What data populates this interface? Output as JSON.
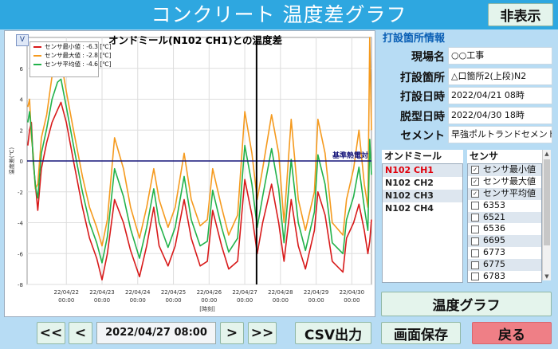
{
  "header": {
    "title": "コンクリート 温度差グラフ",
    "hide_label": "非表示"
  },
  "chart_data": {
    "type": "line",
    "title": "オンドミール(N102 CH1)との温度差",
    "badge": "V",
    "ylabel": "温度差(℃)",
    "xlabel": "[時刻]",
    "ylim": [
      -8,
      8
    ],
    "yticks": [
      -8,
      -6,
      -4,
      -2,
      0,
      2,
      4,
      6
    ],
    "xticks": [
      {
        "x": 2,
        "date": "22/04/22",
        "time": "00:00"
      },
      {
        "x": 3,
        "date": "22/04/23",
        "time": "00:00"
      },
      {
        "x": 4,
        "date": "22/04/24",
        "time": "00:00"
      },
      {
        "x": 5,
        "date": "22/04/25",
        "time": "00:00"
      },
      {
        "x": 6,
        "date": "22/04/26",
        "time": "00:00"
      },
      {
        "x": 7,
        "date": "22/04/27",
        "time": "00:00"
      },
      {
        "x": 8,
        "date": "22/04/28",
        "time": "00:00"
      },
      {
        "x": 9,
        "date": "22/04/29",
        "time": "00:00"
      },
      {
        "x": 10,
        "date": "22/04/30",
        "time": "00:00"
      }
    ],
    "xlim": [
      0.9,
      10.55
    ],
    "grid": true,
    "cursor_x": 7.33,
    "reference": {
      "y": 0,
      "label": "基準熱電対",
      "color": "#15157a"
    },
    "series": [
      {
        "name": "センサ最小値 : -6.3 [℃]",
        "color": "#d81a1a",
        "x": [
          0.92,
          0.97,
          1.02,
          1.07,
          1.13,
          1.2,
          1.3,
          1.45,
          1.6,
          1.75,
          1.85,
          2.0,
          2.2,
          2.45,
          2.65,
          2.85,
          3.0,
          3.15,
          3.35,
          3.6,
          3.8,
          4.05,
          4.25,
          4.45,
          4.6,
          4.85,
          5.05,
          5.3,
          5.5,
          5.75,
          5.95,
          6.1,
          6.35,
          6.55,
          6.8,
          7.0,
          7.2,
          7.35,
          7.5,
          7.75,
          7.95,
          8.1,
          8.3,
          8.5,
          8.7,
          8.95,
          9.05,
          9.25,
          9.45,
          9.75,
          9.85,
          10.05,
          10.2,
          10.35,
          10.45,
          10.5,
          10.55
        ],
        "y": [
          1.0,
          2.0,
          2.5,
          0.0,
          -1.5,
          -3.2,
          -0.5,
          1.2,
          2.5,
          3.3,
          3.8,
          2.5,
          0.0,
          -3.0,
          -5.0,
          -6.3,
          -7.7,
          -6.0,
          -2.5,
          -4.0,
          -5.8,
          -7.5,
          -5.5,
          -3.0,
          -5.5,
          -6.8,
          -5.5,
          -2.5,
          -5.0,
          -6.8,
          -6.5,
          -3.2,
          -5.5,
          -7.0,
          -6.5,
          -1.2,
          -3.5,
          -6.0,
          -4.0,
          -1.5,
          -4.0,
          -6.5,
          -2.5,
          -5.5,
          -7.0,
          -4.5,
          -2.0,
          -3.5,
          -6.5,
          -7.2,
          -5.0,
          -4.0,
          -2.8,
          -4.5,
          -6.0,
          -5.2,
          -3.8
        ]
      },
      {
        "name": "センサ最大値 : -2.8 [℃]",
        "color": "#f59a1e",
        "x": [
          0.92,
          0.97,
          1.02,
          1.07,
          1.13,
          1.2,
          1.3,
          1.45,
          1.6,
          1.75,
          1.85,
          2.0,
          2.2,
          2.45,
          2.65,
          2.85,
          3.0,
          3.15,
          3.35,
          3.6,
          3.8,
          4.05,
          4.25,
          4.45,
          4.6,
          4.85,
          5.05,
          5.3,
          5.5,
          5.75,
          5.95,
          6.1,
          6.35,
          6.55,
          6.8,
          7.0,
          7.2,
          7.35,
          7.5,
          7.75,
          7.95,
          8.1,
          8.3,
          8.5,
          8.7,
          8.95,
          9.05,
          9.25,
          9.45,
          9.75,
          9.85,
          10.05,
          10.2,
          10.35,
          10.45,
          10.5,
          10.55
        ],
        "y": [
          3.5,
          4.0,
          1.5,
          0.5,
          -1.8,
          -1.5,
          1.5,
          3.0,
          5.5,
          6.9,
          6.5,
          4.5,
          2.0,
          -1.0,
          -3.0,
          -4.3,
          -5.5,
          -3.8,
          1.5,
          -0.5,
          -3.0,
          -5.0,
          -3.0,
          -0.5,
          -2.5,
          -4.3,
          -3.0,
          0.5,
          -2.5,
          -4.2,
          -3.8,
          -0.5,
          -3.0,
          -4.8,
          -3.5,
          3.2,
          0.5,
          -2.5,
          -0.5,
          3.0,
          0.5,
          -4.0,
          2.7,
          -2.5,
          -4.5,
          -2.0,
          2.7,
          0.5,
          -4.0,
          -4.8,
          -2.5,
          -0.5,
          2.0,
          -1.5,
          -3.0,
          8.0,
          2.0
        ]
      },
      {
        "name": "センサ平均値 : -4.6 [℃]",
        "color": "#22b24a",
        "x": [
          0.92,
          0.97,
          1.02,
          1.07,
          1.13,
          1.2,
          1.3,
          1.45,
          1.6,
          1.75,
          1.85,
          2.0,
          2.2,
          2.45,
          2.65,
          2.85,
          3.0,
          3.15,
          3.35,
          3.6,
          3.8,
          4.05,
          4.25,
          4.45,
          4.6,
          4.85,
          5.05,
          5.3,
          5.5,
          5.75,
          5.95,
          6.1,
          6.35,
          6.55,
          6.8,
          7.0,
          7.2,
          7.35,
          7.5,
          7.75,
          7.95,
          8.1,
          8.3,
          8.5,
          8.7,
          8.95,
          9.05,
          9.25,
          9.45,
          9.75,
          9.85,
          10.05,
          10.2,
          10.35,
          10.45,
          10.5,
          10.55
        ],
        "y": [
          2.5,
          3.2,
          2.0,
          0.2,
          -1.6,
          -2.4,
          0.5,
          2.1,
          4.0,
          5.1,
          5.3,
          3.5,
          1.0,
          -2.0,
          -4.0,
          -5.3,
          -6.6,
          -4.9,
          -0.5,
          -2.3,
          -4.4,
          -6.3,
          -4.3,
          -1.8,
          -4.0,
          -5.6,
          -4.3,
          -1.0,
          -3.8,
          -5.5,
          -5.2,
          -1.9,
          -4.3,
          -5.9,
          -5.0,
          1.0,
          -1.5,
          -4.3,
          -2.3,
          0.8,
          -1.8,
          -5.3,
          0.1,
          -4.0,
          -5.8,
          -3.3,
          0.4,
          -1.5,
          -5.3,
          -6.0,
          -3.8,
          -2.3,
          -0.4,
          -3.0,
          -4.5,
          1.4,
          -0.9
        ]
      }
    ]
  },
  "info": {
    "section_title": "打設箇所情報",
    "rows": [
      {
        "label": "現場名",
        "value": "○○工事"
      },
      {
        "label": "打設箇所",
        "value": "△口箇所2(上段)N2"
      },
      {
        "label": "打設日時",
        "value": "2022/04/21 08時"
      },
      {
        "label": "脱型日時",
        "value": "2022/04/30 18時"
      },
      {
        "label": "セメント",
        "value": "早強ポルトランドセメント"
      }
    ]
  },
  "ondomill": {
    "header": "オンドミール",
    "items": [
      "N102 CH1",
      "N102 CH2",
      "N102 CH3",
      "N102 CH4"
    ]
  },
  "sensors": {
    "header": "センサ",
    "items": [
      {
        "label": "センサ最小値",
        "checked": true
      },
      {
        "label": "センサ最大値",
        "checked": true
      },
      {
        "label": "センサ平均値",
        "checked": true
      },
      {
        "label": "6353",
        "checked": false
      },
      {
        "label": "6521",
        "checked": false
      },
      {
        "label": "6536",
        "checked": false
      },
      {
        "label": "6695",
        "checked": false
      },
      {
        "label": "6773",
        "checked": false
      },
      {
        "label": "6775",
        "checked": false
      },
      {
        "label": "6783",
        "checked": false
      }
    ]
  },
  "buttons": {
    "temp_graph": "温度グラフ",
    "first": "<<",
    "prev": "<",
    "next": ">",
    "last": ">>",
    "csv": "CSV出力",
    "save_screen": "画面保存",
    "back": "戻る"
  },
  "date_display": "2022/04/27 08:00"
}
